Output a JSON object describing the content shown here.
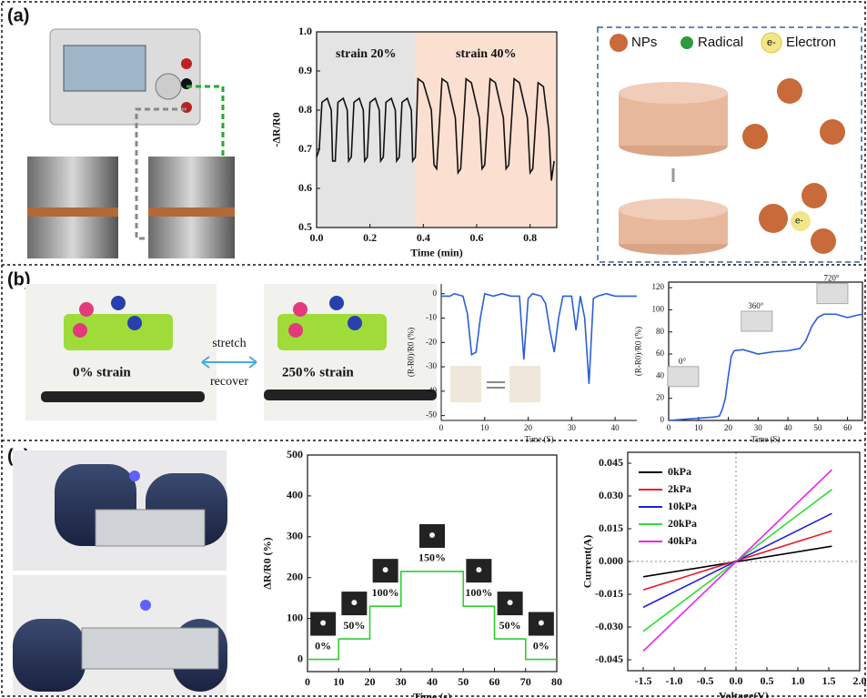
{
  "panels": {
    "a": "(a)",
    "b": "(b)",
    "c": "(c)"
  },
  "diagram": {
    "legend": [
      "NPs",
      "Radical",
      "Electron"
    ],
    "electron_symbol": "e-"
  },
  "photos": {
    "strain0": "0% strain",
    "strain250": "250% strain",
    "stretch": "stretch",
    "recover": "recover"
  },
  "chart_data": [
    {
      "type": "line",
      "xlabel": "Time (min)",
      "ylabel": "-ΔR/R0",
      "color": "#111111",
      "xlim": [
        0,
        0.9
      ],
      "xticks": [
        {
          "value": 0,
          "label": "0.0"
        },
        0.2,
        0.4,
        0.6,
        0.8
      ],
      "ylim": [
        0.5,
        1.0
      ],
      "yticks": [
        0.5,
        0.6,
        0.7,
        0.8,
        0.9,
        {
          "value": 1,
          "label": "1.0"
        }
      ],
      "regions": [
        {
          "label": "strain 20%",
          "from": 0,
          "to": 0.37,
          "color": "#e4e4e4"
        },
        {
          "label": "strain 40%",
          "from": 0.37,
          "to": 0.9,
          "color": "#fbe0d2"
        }
      ],
      "x": [
        0,
        0.01,
        0.02,
        0.04,
        0.055,
        0.06,
        0.07,
        0.08,
        0.1,
        0.115,
        0.12,
        0.13,
        0.14,
        0.16,
        0.175,
        0.18,
        0.19,
        0.2,
        0.22,
        0.235,
        0.24,
        0.25,
        0.26,
        0.28,
        0.295,
        0.3,
        0.31,
        0.32,
        0.34,
        0.355,
        0.36,
        0.37,
        0.38,
        0.4,
        0.43,
        0.44,
        0.45,
        0.47,
        0.49,
        0.52,
        0.53,
        0.54,
        0.56,
        0.58,
        0.61,
        0.62,
        0.63,
        0.65,
        0.67,
        0.7,
        0.71,
        0.72,
        0.74,
        0.76,
        0.79,
        0.8,
        0.81,
        0.83,
        0.85,
        0.87,
        0.88,
        0.89
      ],
      "values": [
        0.68,
        0.7,
        0.82,
        0.83,
        0.8,
        0.67,
        0.67,
        0.82,
        0.83,
        0.8,
        0.67,
        0.68,
        0.82,
        0.83,
        0.8,
        0.67,
        0.68,
        0.82,
        0.83,
        0.8,
        0.67,
        0.68,
        0.82,
        0.83,
        0.8,
        0.67,
        0.68,
        0.82,
        0.83,
        0.8,
        0.67,
        0.68,
        0.88,
        0.87,
        0.8,
        0.66,
        0.65,
        0.88,
        0.87,
        0.78,
        0.64,
        0.65,
        0.88,
        0.87,
        0.78,
        0.65,
        0.66,
        0.88,
        0.87,
        0.78,
        0.65,
        0.66,
        0.88,
        0.87,
        0.78,
        0.64,
        0.65,
        0.87,
        0.86,
        0.75,
        0.62,
        0.67
      ]
    },
    {
      "type": "line",
      "xlabel": "Time (S)",
      "ylabel": "(R-R0)/R0 (%)",
      "color": "#2a5fd6",
      "xlim": [
        0,
        45
      ],
      "xticks": [
        0,
        10,
        20,
        30,
        40
      ],
      "ylim": [
        -52,
        4
      ],
      "yticks": [
        0,
        -10,
        -20,
        -30,
        -40,
        -50
      ],
      "x": [
        0,
        2,
        3,
        5,
        6,
        7,
        8,
        9,
        10,
        12,
        14,
        16,
        18,
        19,
        20,
        21,
        23,
        24,
        25,
        26,
        27,
        28,
        30,
        31,
        32,
        33,
        34,
        35,
        36,
        38,
        40,
        42,
        45
      ],
      "values": [
        -1,
        -1,
        0,
        -1,
        -8,
        -25,
        -24,
        -10,
        0,
        -1,
        0,
        -1,
        -1,
        -27,
        -2,
        0,
        -1,
        -4,
        -15,
        -24,
        -10,
        -1,
        -1,
        -15,
        -1,
        -10,
        -37,
        -2,
        -1,
        0,
        -1,
        -1,
        -1
      ]
    },
    {
      "type": "line",
      "xlabel": "Time (S)",
      "ylabel": "(R-R0)/R0 (%)",
      "color": "#2a5fd6",
      "xlim": [
        0,
        65
      ],
      "xticks": [
        0,
        10,
        20,
        30,
        40,
        50,
        60
      ],
      "ylim": [
        0,
        125
      ],
      "yticks": [
        0,
        20,
        40,
        60,
        80,
        100,
        120
      ],
      "inset_labels": [
        "0°",
        "360°",
        "720°"
      ],
      "x": [
        0,
        5,
        10,
        15,
        17,
        18,
        19,
        20,
        21,
        22,
        25,
        30,
        35,
        40,
        44,
        46,
        48,
        50,
        52,
        56,
        60,
        63,
        65
      ],
      "values": [
        0,
        1,
        2,
        3,
        4,
        10,
        20,
        40,
        58,
        63,
        64,
        60,
        62,
        63,
        65,
        72,
        85,
        93,
        96,
        96,
        93,
        95,
        96
      ]
    },
    {
      "type": "line",
      "xlabel": "Time (s)",
      "ylabel": "ΔR/R0 (%)",
      "color": "#33cc33",
      "xlim": [
        0,
        80
      ],
      "xticks": [
        0,
        10,
        20,
        30,
        40,
        50,
        60,
        70,
        80
      ],
      "ylim": [
        -30,
        500
      ],
      "yticks": [
        0,
        100,
        200,
        300,
        400,
        500
      ],
      "step_labels": [
        "0%",
        "50%",
        "100%",
        "150%",
        "100%",
        "50%",
        "0%"
      ],
      "x": [
        0,
        10,
        10,
        20,
        20,
        30,
        30,
        50,
        50,
        60,
        60,
        70,
        70,
        80
      ],
      "values": [
        0,
        0,
        50,
        50,
        130,
        130,
        215,
        215,
        130,
        130,
        50,
        50,
        0,
        0
      ]
    },
    {
      "type": "line",
      "xlabel": "Voltage(V)",
      "ylabel": "Current(A)",
      "zero_lines": true,
      "xlim": [
        -1.75,
        2.0
      ],
      "xticks": [
        -1.5,
        {
          "value": -1,
          "label": "-1.0"
        },
        -0.5,
        {
          "value": 0,
          "label": "0.0"
        },
        0.5,
        {
          "value": 1,
          "label": "1.0"
        },
        1.5,
        {
          "value": 2,
          "label": "2.0"
        }
      ],
      "ylim": [
        -0.05,
        0.05
      ],
      "yticks": [
        0.045,
        {
          "value": 0.03,
          "label": "0.030"
        },
        0.015,
        {
          "value": 0,
          "label": "0.000"
        },
        -0.015,
        {
          "value": -0.03,
          "label": "-0.030"
        },
        -0.045
      ],
      "x": [
        -1.5,
        1.55
      ],
      "series": [
        {
          "name": "0kPa",
          "color": "#000000",
          "values": [
            -0.007,
            0.007
          ]
        },
        {
          "name": "2kPa",
          "color": "#e8202a",
          "values": [
            -0.013,
            0.014
          ]
        },
        {
          "name": "10kPa",
          "color": "#1f1fe0",
          "values": [
            -0.021,
            0.022
          ]
        },
        {
          "name": "20kPa",
          "color": "#33dd33",
          "values": [
            -0.032,
            0.033
          ]
        },
        {
          "name": "40kPa",
          "color": "#ee22ee",
          "values": [
            -0.041,
            0.042
          ]
        }
      ]
    }
  ]
}
